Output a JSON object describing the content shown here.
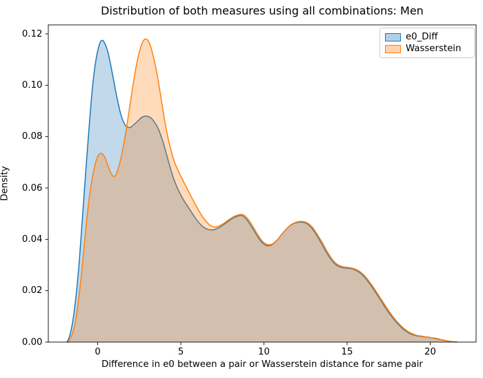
{
  "chart_data": {
    "type": "area",
    "subtype": "kde-density",
    "title": "Distribution of both measures using all combinations: Men",
    "xlabel": "Difference in e0 between a pair or Wasserstein distance for same pair",
    "ylabel": "Density",
    "xlim": [
      -2.97,
      22.76
    ],
    "ylim": [
      0,
      0.1235
    ],
    "xticks": [
      0,
      5,
      10,
      15,
      20
    ],
    "yticks": [
      0.0,
      0.02,
      0.04,
      0.06,
      0.08,
      0.1,
      0.12
    ],
    "grid": false,
    "legend_position": "upper right",
    "axes_color": "#000000",
    "series": [
      {
        "name": "e0_Diff",
        "color": "#1f77b4",
        "fill_alpha": 0.28,
        "points": [
          [
            -1.85,
            0
          ],
          [
            -1.7,
            0.002
          ],
          [
            -1.5,
            0.008
          ],
          [
            -1.3,
            0.018
          ],
          [
            -1.1,
            0.032
          ],
          [
            -0.9,
            0.05
          ],
          [
            -0.7,
            0.068
          ],
          [
            -0.5,
            0.085
          ],
          [
            -0.3,
            0.1
          ],
          [
            -0.1,
            0.11
          ],
          [
            0.1,
            0.1158
          ],
          [
            0.27,
            0.1175
          ],
          [
            0.45,
            0.116
          ],
          [
            0.65,
            0.112
          ],
          [
            0.9,
            0.104
          ],
          [
            1.15,
            0.0955
          ],
          [
            1.4,
            0.0885
          ],
          [
            1.65,
            0.0845
          ],
          [
            1.9,
            0.0835
          ],
          [
            2.15,
            0.0845
          ],
          [
            2.4,
            0.086
          ],
          [
            2.65,
            0.0875
          ],
          [
            2.9,
            0.088
          ],
          [
            3.15,
            0.0875
          ],
          [
            3.4,
            0.0858
          ],
          [
            3.65,
            0.083
          ],
          [
            3.95,
            0.0775
          ],
          [
            4.25,
            0.0705
          ],
          [
            4.55,
            0.064
          ],
          [
            4.85,
            0.0592
          ],
          [
            5.15,
            0.0555
          ],
          [
            5.45,
            0.0525
          ],
          [
            5.75,
            0.0495
          ],
          [
            6.05,
            0.0468
          ],
          [
            6.35,
            0.0448
          ],
          [
            6.65,
            0.0438
          ],
          [
            6.95,
            0.0437
          ],
          [
            7.25,
            0.0444
          ],
          [
            7.55,
            0.0456
          ],
          [
            7.85,
            0.047
          ],
          [
            8.15,
            0.0483
          ],
          [
            8.45,
            0.0491
          ],
          [
            8.7,
            0.0492
          ],
          [
            8.95,
            0.0478
          ],
          [
            9.25,
            0.045
          ],
          [
            9.55,
            0.0418
          ],
          [
            9.85,
            0.039
          ],
          [
            10.15,
            0.0376
          ],
          [
            10.45,
            0.0378
          ],
          [
            10.75,
            0.0394
          ],
          [
            11.05,
            0.0418
          ],
          [
            11.35,
            0.044
          ],
          [
            11.65,
            0.0457
          ],
          [
            11.95,
            0.0465
          ],
          [
            12.25,
            0.0467
          ],
          [
            12.55,
            0.0462
          ],
          [
            12.85,
            0.0446
          ],
          [
            13.15,
            0.0418
          ],
          [
            13.45,
            0.0385
          ],
          [
            13.75,
            0.035
          ],
          [
            14.05,
            0.032
          ],
          [
            14.35,
            0.03
          ],
          [
            14.65,
            0.0291
          ],
          [
            14.95,
            0.0288
          ],
          [
            15.25,
            0.0286
          ],
          [
            15.55,
            0.0279
          ],
          [
            15.85,
            0.0266
          ],
          [
            16.15,
            0.0245
          ],
          [
            16.45,
            0.0219
          ],
          [
            16.75,
            0.019
          ],
          [
            17.05,
            0.016
          ],
          [
            17.35,
            0.013
          ],
          [
            17.65,
            0.0102
          ],
          [
            17.95,
            0.0078
          ],
          [
            18.25,
            0.0058
          ],
          [
            18.55,
            0.0042
          ],
          [
            18.85,
            0.0031
          ],
          [
            19.15,
            0.0025
          ],
          [
            19.45,
            0.0022
          ],
          [
            19.75,
            0.002
          ],
          [
            20.05,
            0.0017
          ],
          [
            20.35,
            0.0013
          ],
          [
            20.65,
            0.0009
          ],
          [
            20.95,
            0.0005
          ],
          [
            21.25,
            0.0002
          ],
          [
            21.6,
            0
          ]
        ]
      },
      {
        "name": "Wasserstein",
        "color": "#ff7f0e",
        "fill_alpha": 0.28,
        "points": [
          [
            -1.8,
            0
          ],
          [
            -1.6,
            0.002
          ],
          [
            -1.4,
            0.006
          ],
          [
            -1.2,
            0.014
          ],
          [
            -1.0,
            0.025
          ],
          [
            -0.8,
            0.038
          ],
          [
            -0.6,
            0.051
          ],
          [
            -0.4,
            0.061
          ],
          [
            -0.2,
            0.068
          ],
          [
            0.0,
            0.0722
          ],
          [
            0.2,
            0.0735
          ],
          [
            0.4,
            0.0723
          ],
          [
            0.6,
            0.069
          ],
          [
            0.8,
            0.0658
          ],
          [
            0.95,
            0.0645
          ],
          [
            1.1,
            0.0652
          ],
          [
            1.3,
            0.069
          ],
          [
            1.5,
            0.0748
          ],
          [
            1.7,
            0.082
          ],
          [
            1.9,
            0.0905
          ],
          [
            2.1,
            0.099
          ],
          [
            2.3,
            0.1068
          ],
          [
            2.5,
            0.1128
          ],
          [
            2.7,
            0.1168
          ],
          [
            2.9,
            0.118
          ],
          [
            3.1,
            0.1166
          ],
          [
            3.3,
            0.1125
          ],
          [
            3.55,
            0.1052
          ],
          [
            3.8,
            0.0955
          ],
          [
            4.05,
            0.0855
          ],
          [
            4.3,
            0.0775
          ],
          [
            4.6,
            0.0705
          ],
          [
            4.9,
            0.066
          ],
          [
            5.2,
            0.062
          ],
          [
            5.5,
            0.0582
          ],
          [
            5.8,
            0.0545
          ],
          [
            6.1,
            0.051
          ],
          [
            6.4,
            0.048
          ],
          [
            6.7,
            0.0458
          ],
          [
            7.0,
            0.0448
          ],
          [
            7.3,
            0.0452
          ],
          [
            7.6,
            0.0463
          ],
          [
            7.9,
            0.0477
          ],
          [
            8.2,
            0.0489
          ],
          [
            8.5,
            0.0496
          ],
          [
            8.75,
            0.0496
          ],
          [
            9.0,
            0.0482
          ],
          [
            9.3,
            0.0454
          ],
          [
            9.6,
            0.0421
          ],
          [
            9.9,
            0.0393
          ],
          [
            10.2,
            0.038
          ],
          [
            10.5,
            0.0382
          ],
          [
            10.8,
            0.0398
          ],
          [
            11.1,
            0.0422
          ],
          [
            11.4,
            0.0444
          ],
          [
            11.7,
            0.046
          ],
          [
            12.0,
            0.0468
          ],
          [
            12.3,
            0.047
          ],
          [
            12.6,
            0.0464
          ],
          [
            12.9,
            0.0448
          ],
          [
            13.2,
            0.042
          ],
          [
            13.5,
            0.0388
          ],
          [
            13.8,
            0.0353
          ],
          [
            14.1,
            0.0323
          ],
          [
            14.4,
            0.0303
          ],
          [
            14.7,
            0.0294
          ],
          [
            15.0,
            0.0291
          ],
          [
            15.3,
            0.0288
          ],
          [
            15.6,
            0.0281
          ],
          [
            15.9,
            0.0268
          ],
          [
            16.2,
            0.0247
          ],
          [
            16.5,
            0.0221
          ],
          [
            16.8,
            0.0192
          ],
          [
            17.1,
            0.0162
          ],
          [
            17.4,
            0.0132
          ],
          [
            17.7,
            0.0104
          ],
          [
            18.0,
            0.008
          ],
          [
            18.3,
            0.006
          ],
          [
            18.6,
            0.0044
          ],
          [
            18.9,
            0.0033
          ],
          [
            19.2,
            0.0026
          ],
          [
            19.5,
            0.0023
          ],
          [
            19.8,
            0.002
          ],
          [
            20.1,
            0.0017
          ],
          [
            20.4,
            0.0014
          ],
          [
            20.7,
            0.0009
          ],
          [
            21.0,
            0.0005
          ],
          [
            21.3,
            0.0002
          ],
          [
            21.55,
            0
          ]
        ]
      }
    ]
  }
}
